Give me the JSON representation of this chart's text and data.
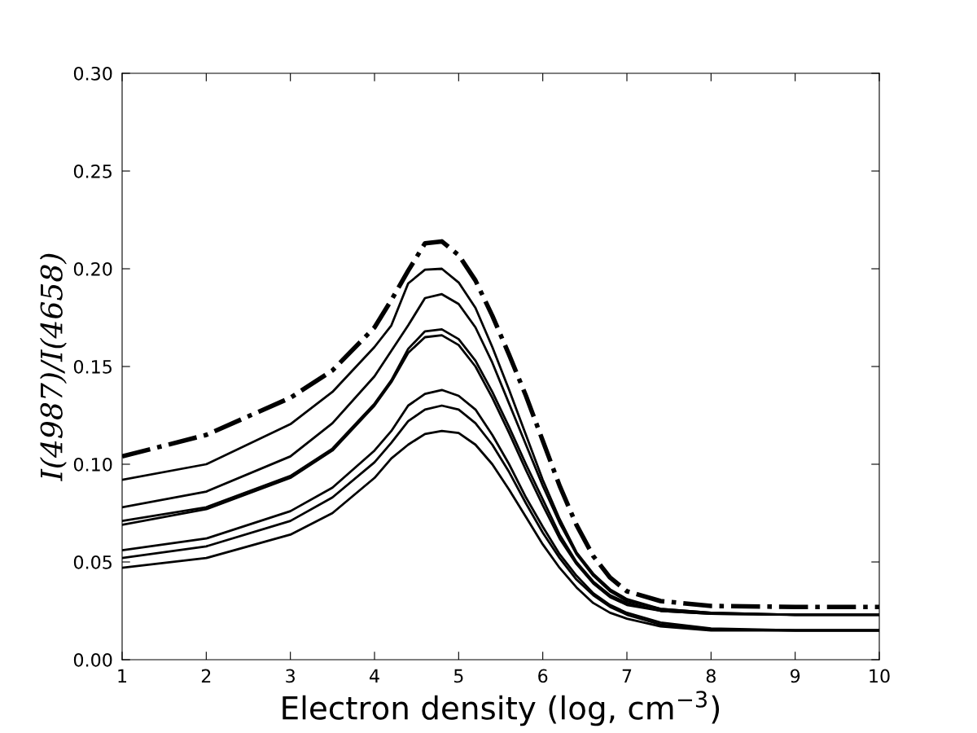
{
  "chart_data": {
    "type": "line",
    "xlabel": "Electron density (log, cm$^{−3}$)",
    "ylabel": "I(4987)/I(4658)",
    "x": [
      1,
      2,
      3,
      3.5,
      4,
      4.2,
      4.4,
      4.6,
      4.8,
      5.0,
      5.2,
      5.4,
      5.6,
      5.8,
      6.0,
      6.2,
      6.4,
      6.6,
      6.8,
      7.0,
      7.4,
      8,
      9,
      10
    ],
    "series": [
      {
        "color": "#000000",
        "line_style": "dashdot",
        "values": [
          0.104,
          0.115,
          0.134,
          0.148,
          0.17,
          0.184,
          0.199,
          0.213,
          0.214,
          0.207,
          0.194,
          0.176,
          0.156,
          0.135,
          0.112,
          0.089,
          0.069,
          0.053,
          0.042,
          0.035,
          0.03,
          0.0275,
          0.027,
          0.027
        ]
      },
      {
        "color": "#000000",
        "line_style": "solid",
        "values": [
          0.092,
          0.1,
          0.1205,
          0.137,
          0.16,
          0.171,
          0.1925,
          0.1995,
          0.2,
          0.193,
          0.18,
          0.16,
          0.138,
          0.115,
          0.092,
          0.072,
          0.055,
          0.044,
          0.036,
          0.031,
          0.026,
          0.024,
          0.023,
          0.023
        ]
      },
      {
        "color": "#000000",
        "line_style": "solid",
        "values": [
          0.078,
          0.086,
          0.104,
          0.121,
          0.145,
          0.158,
          0.171,
          0.185,
          0.187,
          0.182,
          0.17,
          0.152,
          0.131,
          0.11,
          0.089,
          0.07,
          0.054,
          0.043,
          0.035,
          0.03,
          0.026,
          0.024,
          0.023,
          0.023
        ]
      },
      {
        "color": "#000000",
        "line_style": "solid",
        "values": [
          0.071,
          0.078,
          0.094,
          0.108,
          0.131,
          0.143,
          0.159,
          0.168,
          0.169,
          0.164,
          0.153,
          0.137,
          0.119,
          0.1,
          0.082,
          0.064,
          0.05,
          0.04,
          0.033,
          0.029,
          0.025,
          0.0235,
          0.023,
          0.023
        ]
      },
      {
        "color": "#000000",
        "line_style": "solid",
        "values": [
          0.069,
          0.077,
          0.093,
          0.107,
          0.13,
          0.142,
          0.157,
          0.165,
          0.166,
          0.161,
          0.15,
          0.134,
          0.116,
          0.097,
          0.079,
          0.062,
          0.049,
          0.039,
          0.032,
          0.028,
          0.025,
          0.0235,
          0.023,
          0.023
        ]
      },
      {
        "color": "#000000",
        "line_style": "solid",
        "values": [
          0.056,
          0.062,
          0.076,
          0.088,
          0.107,
          0.117,
          0.13,
          0.136,
          0.138,
          0.135,
          0.128,
          0.115,
          0.1,
          0.083,
          0.068,
          0.054,
          0.043,
          0.034,
          0.028,
          0.024,
          0.019,
          0.016,
          0.015,
          0.015
        ]
      },
      {
        "color": "#000000",
        "line_style": "solid",
        "values": [
          0.052,
          0.058,
          0.071,
          0.083,
          0.101,
          0.111,
          0.122,
          0.128,
          0.13,
          0.128,
          0.121,
          0.11,
          0.096,
          0.08,
          0.065,
          0.052,
          0.041,
          0.033,
          0.027,
          0.023,
          0.018,
          0.0155,
          0.015,
          0.015
        ]
      },
      {
        "color": "#000000",
        "line_style": "solid",
        "values": [
          0.047,
          0.052,
          0.064,
          0.075,
          0.093,
          0.103,
          0.11,
          0.1155,
          0.117,
          0.116,
          0.11,
          0.1,
          0.087,
          0.073,
          0.059,
          0.047,
          0.037,
          0.029,
          0.024,
          0.021,
          0.017,
          0.015,
          0.015,
          0.015
        ]
      }
    ],
    "xlim": [
      1,
      10
    ],
    "xticks": [
      1,
      2,
      3,
      4,
      5,
      6,
      7,
      8,
      9,
      10
    ],
    "ylim": [
      0,
      0.3
    ],
    "yticks": [
      {
        "value": 0,
        "label": "0.00"
      },
      {
        "value": 0.05,
        "label": "0.05"
      },
      {
        "value": 0.1,
        "label": "0.10"
      },
      {
        "value": 0.15,
        "label": "0.15"
      },
      {
        "value": 0.2,
        "label": "0.20"
      },
      {
        "value": 0.25,
        "label": "0.25"
      },
      {
        "value": 0.3,
        "label": "0.30"
      }
    ],
    "grid": false
  }
}
